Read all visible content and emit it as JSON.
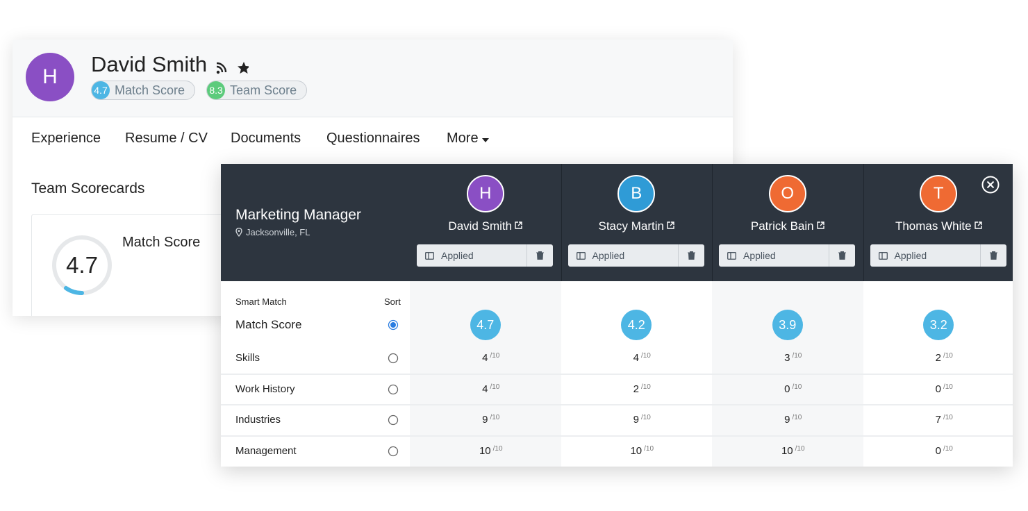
{
  "profile": {
    "initial": "H",
    "name": "David Smith",
    "avatar_color": "#8a4fc4",
    "badges": [
      {
        "value": 4.7,
        "label": "Match Score",
        "color": "#4db6e4"
      },
      {
        "value": 8.3,
        "label": "Team Score",
        "color": "#5ccb7c"
      }
    ]
  },
  "tabs": [
    "Experience",
    "Resume / CV",
    "Documents",
    "Questionnaires",
    "More"
  ],
  "scorecards": {
    "title": "Team Scorecards",
    "score": 4.7,
    "label": "Match Score"
  },
  "comparison": {
    "job_title": "Marketing Manager",
    "location": "Jacksonville, FL",
    "candidates": [
      {
        "initial": "H",
        "name": "David Smith",
        "color": "#8a4fc4",
        "status": "Applied"
      },
      {
        "initial": "B",
        "name": "Stacy Martin",
        "color": "#2f9bd6",
        "status": "Applied"
      },
      {
        "initial": "O",
        "name": "Patrick Bain",
        "color": "#ef6a33",
        "status": "Applied"
      },
      {
        "initial": "T",
        "name": "Thomas White",
        "color": "#ef6a33",
        "status": "Applied"
      }
    ],
    "smart_match": "Smart Match",
    "sort": "Sort",
    "out_of": "/10",
    "match_score": {
      "label": "Match Score",
      "sorted": true,
      "color": "#4db6e4",
      "values": [
        4.7,
        4.2,
        3.9,
        3.2
      ]
    },
    "criteria": [
      {
        "label": "Skills",
        "values": [
          4,
          4,
          3,
          2
        ]
      },
      {
        "label": "Work History",
        "values": [
          4,
          2,
          0,
          0
        ]
      },
      {
        "label": "Industries",
        "values": [
          9,
          9,
          9,
          7
        ]
      },
      {
        "label": "Management",
        "values": [
          10,
          10,
          10,
          0
        ]
      }
    ]
  }
}
